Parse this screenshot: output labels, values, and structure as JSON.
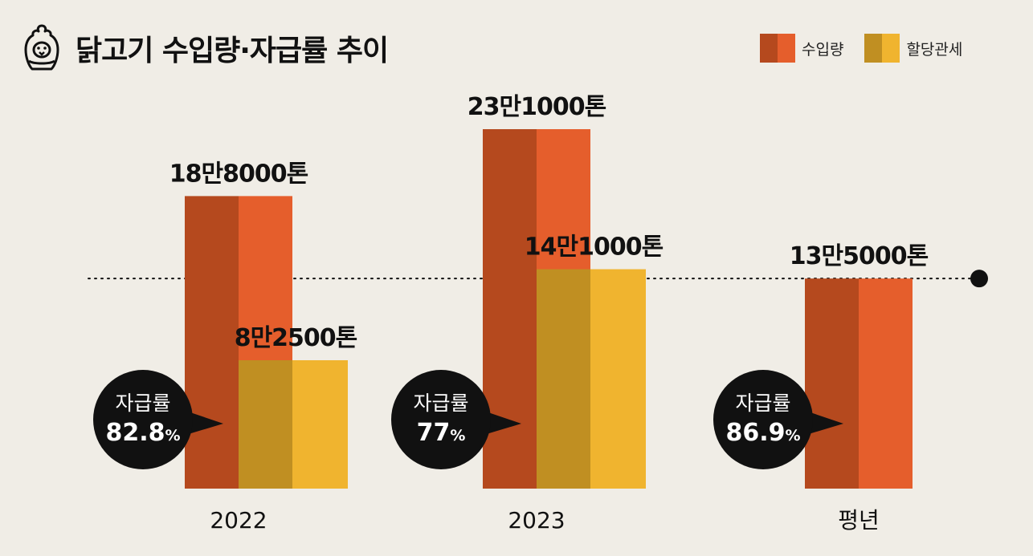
{
  "title": "닭고기 수입량·자급률 추이",
  "icon": "chicken-icon",
  "legend": [
    {
      "name": "수입량",
      "colors": [
        "#b5491e",
        "#e55e2c"
      ]
    },
    {
      "name": "할당관세",
      "colors": [
        "#c08f22",
        "#f0b42f"
      ]
    }
  ],
  "chart_data": {
    "type": "bar",
    "unit": "톤",
    "categories": [
      "2022",
      "2023",
      "평년"
    ],
    "series": [
      {
        "name": "수입량",
        "values": [
          188000,
          231000,
          135000
        ],
        "labels": [
          "18만8000톤",
          "23만1000톤",
          "13만5000톤"
        ]
      },
      {
        "name": "할당관세",
        "values": [
          82500,
          141000,
          null
        ],
        "labels": [
          "8만2500톤",
          "14만1000톤",
          null
        ]
      }
    ],
    "self_sufficiency": {
      "label": "자급률",
      "values": [
        "82.8",
        "77",
        "86.9"
      ],
      "suffix": "%"
    },
    "reference_line": {
      "name": "평년 수입량",
      "value": 135000
    },
    "ylim": [
      0,
      235000
    ]
  }
}
